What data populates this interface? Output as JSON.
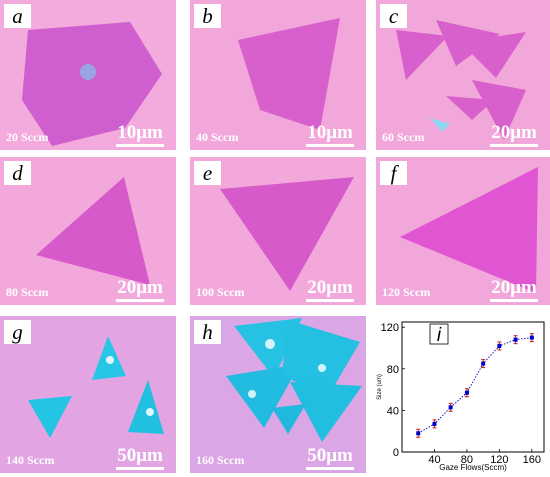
{
  "panels": [
    {
      "letter": "a",
      "flow": "20 Sccm",
      "scale": "10μm"
    },
    {
      "letter": "b",
      "flow": "40 Sccm",
      "scale": "10μm"
    },
    {
      "letter": "c",
      "flow": "60 Sccm",
      "scale": "20μm"
    },
    {
      "letter": "d",
      "flow": "80 Sccm",
      "scale": "20μm"
    },
    {
      "letter": "e",
      "flow": "100 Sccm",
      "scale": "20μm"
    },
    {
      "letter": "f",
      "flow": "120 Sccm",
      "scale": "20μm"
    },
    {
      "letter": "g",
      "flow": "140 Sccm",
      "scale": "50μm"
    },
    {
      "letter": "h",
      "flow": "160 Sccm",
      "scale": "50μm"
    }
  ],
  "chart_letter": "i",
  "colors": {
    "substrate": "#f2a9dc",
    "flake": "#d65cc9",
    "dark_flake": "#c855c4",
    "cyan": "#20c8e8"
  },
  "chart_data": {
    "type": "line",
    "xlabel": "Gaze Flows(Sccm)",
    "ylabel": "Size (um)",
    "x": [
      20,
      40,
      60,
      80,
      100,
      120,
      140,
      160
    ],
    "values": [
      18,
      27,
      43,
      57,
      85,
      102,
      108,
      110
    ],
    "xticks": [
      "40",
      "80",
      "120",
      "160"
    ],
    "yticks": [
      "0",
      "40",
      "80",
      "120"
    ],
    "xlim": [
      0,
      175
    ],
    "ylim": [
      0,
      125
    ],
    "markers": "square",
    "line_style": "dotted",
    "color": "#0000cc",
    "error_color": "#c02020"
  }
}
